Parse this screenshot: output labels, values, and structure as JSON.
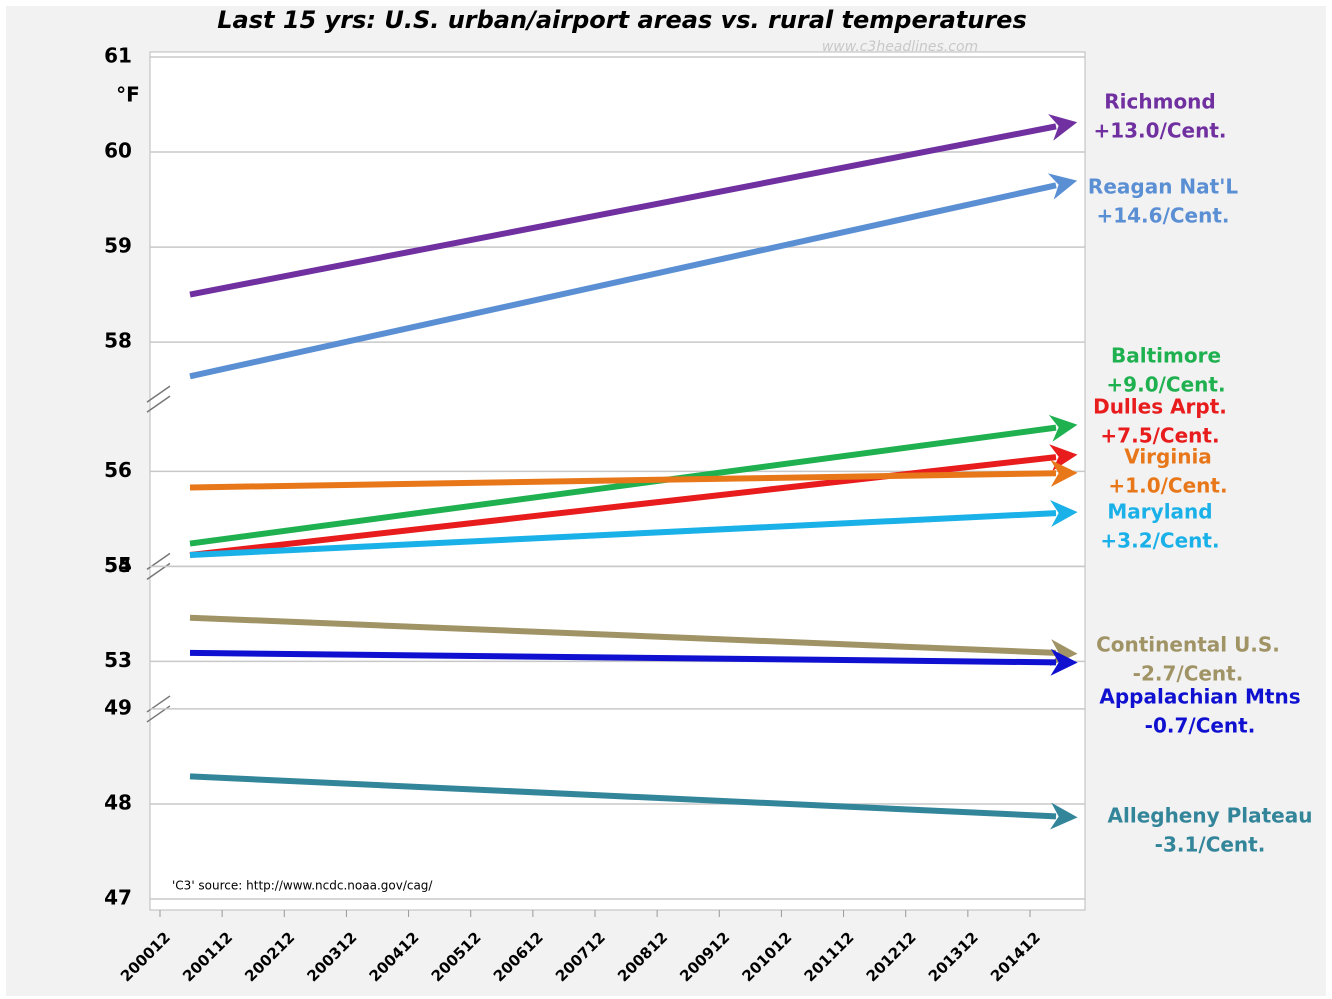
{
  "chart_data": {
    "type": "line",
    "title": "Last 15 yrs: U.S. urban/airport areas vs. rural temperatures",
    "watermark": "www.c3headlines.com",
    "source": "'C3' source: http://www.ncdc.noaa.gov/cag/",
    "y_unit": "°F",
    "categories": [
      "200012",
      "200112",
      "200212",
      "200312",
      "200412",
      "200512",
      "200612",
      "200712",
      "200812",
      "200912",
      "201012",
      "201112",
      "201212",
      "201312",
      "201412"
    ],
    "x": [
      "200012",
      "201412"
    ],
    "y_panels": [
      {
        "ylim": [
          57.4,
          61
        ],
        "yticks": [
          58,
          59,
          60,
          61
        ]
      },
      {
        "ylim": [
          55,
          56.76
        ],
        "yticks": [
          55,
          56
        ]
      },
      {
        "ylim": [
          52.5,
          54
        ],
        "yticks": [
          53,
          54
        ]
      },
      {
        "ylim": [
          47,
          49
        ],
        "yticks": [
          47,
          48,
          49
        ]
      }
    ],
    "grid": true,
    "series": [
      {
        "name": "Richmond",
        "label": "+13.0/Cent.",
        "color": "#7030a0",
        "values": [
          58.5,
          60.27
        ]
      },
      {
        "name": "Reagan Nat'L",
        "label": "+14.6/Cent.",
        "color": "#5b8fd4",
        "values": [
          57.64,
          59.65
        ]
      },
      {
        "name": "Baltimore",
        "label": "+9.0/Cent.",
        "color": "#1fb050",
        "values": [
          55.24,
          56.46
        ]
      },
      {
        "name": "Dulles Arpt.",
        "label": "+7.5/Cent.",
        "color": "#e81c1c",
        "values": [
          55.12,
          56.15
        ]
      },
      {
        "name": "Virginia",
        "label": "+1.0/Cent.",
        "color": "#e8771a",
        "values": [
          55.83,
          55.98
        ]
      },
      {
        "name": "Maryland",
        "label": "+3.2/Cent.",
        "color": "#1ab0e8",
        "values": [
          55.12,
          55.56
        ]
      },
      {
        "name": "Continental U.S.",
        "label": "-2.7/Cent.",
        "color": "#a09466",
        "values": [
          53.46,
          53.09
        ]
      },
      {
        "name": "Appalachian Mtns",
        "label": "-0.7/Cent.",
        "color": "#1010d0",
        "values": [
          53.09,
          52.99
        ]
      },
      {
        "name": "Allegheny Plateau",
        "label": "-3.1/Cent.",
        "color": "#33859a",
        "values": [
          48.29,
          47.87
        ]
      }
    ]
  }
}
